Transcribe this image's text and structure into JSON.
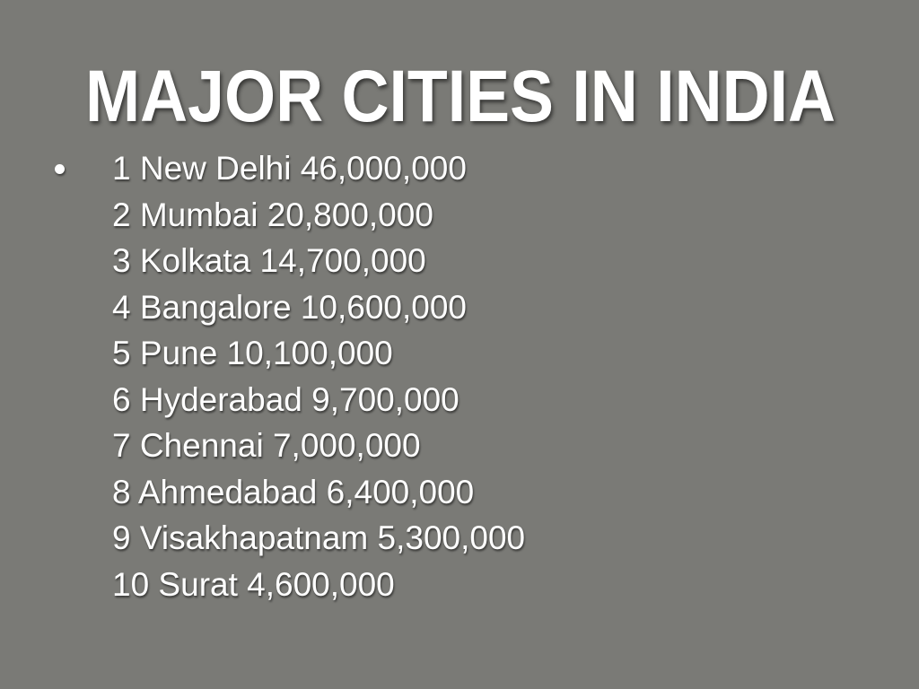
{
  "slide": {
    "title": "MAJOR CITIES IN INDIA",
    "items": [
      "1 New Delhi 46,000,000",
      "2 Mumbai 20,800,000",
      "3 Kolkata 14,700,000",
      "4 Bangalore 10,600,000",
      "5 Pune 10,100,000",
      "6 Hyderabad 9,700,000",
      "7 Chennai 7,000,000",
      "8 Ahmedabad 6,400,000",
      "9 Visakhapatnam 5,300,000",
      "10 Surat 4,600,000"
    ]
  }
}
